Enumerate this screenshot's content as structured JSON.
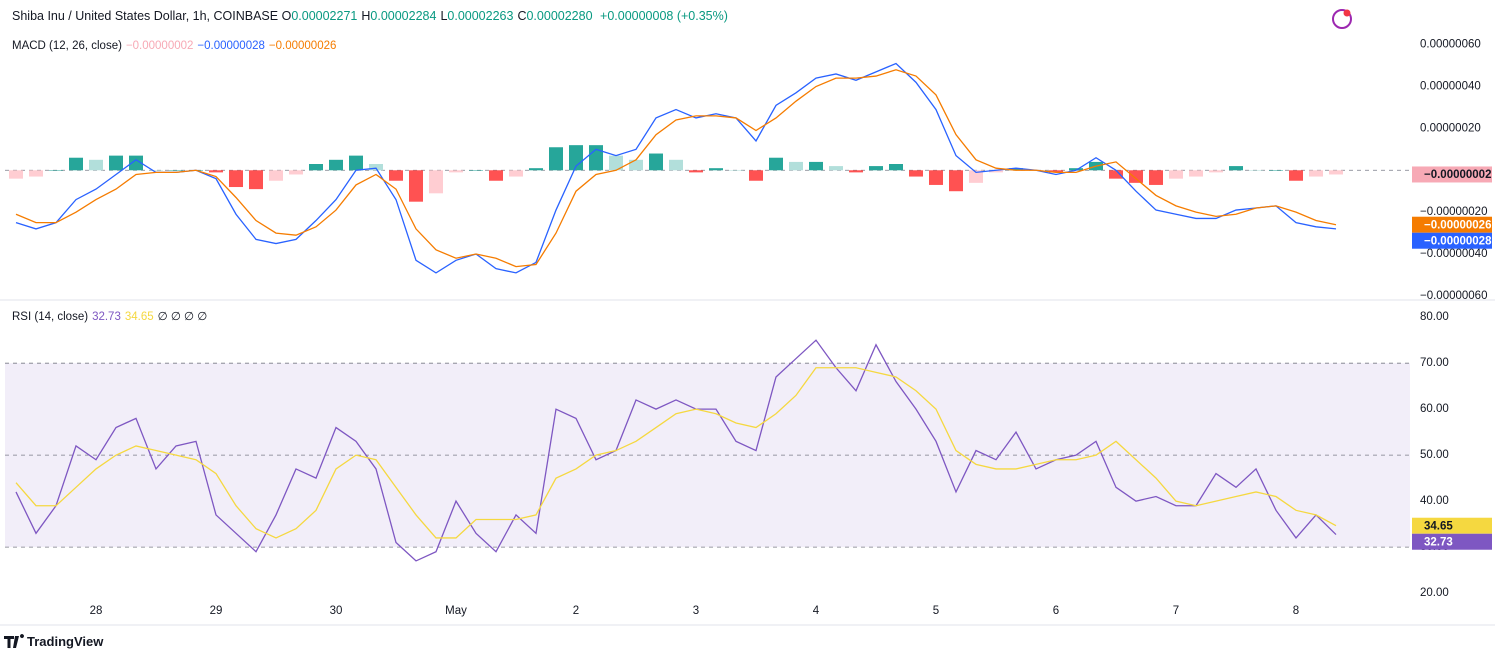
{
  "header": {
    "title": "Shiba Inu / United States Dollar, 1h, COINBASE",
    "ohlc": [
      {
        "label": "O",
        "value": "0.00002271"
      },
      {
        "label": "H",
        "value": "0.00002284"
      },
      {
        "label": "L",
        "value": "0.00002263"
      },
      {
        "label": "C",
        "value": "0.00002280"
      }
    ],
    "change": "+0.00000008 (+0.35%)"
  },
  "footer": {
    "brand": "TradingView"
  },
  "chart_data": [
    {
      "type": "line",
      "title": "MACD (12, 26, close)",
      "ylim": [
        -6.1e-07,
        6.7e-07
      ],
      "yticks": [
        {
          "value": 6e-07,
          "label": "0.00000060"
        },
        {
          "value": 4e-07,
          "label": "0.00000040"
        },
        {
          "value": 2e-07,
          "label": "0.00000020"
        },
        {
          "value": -2e-07,
          "label": "−0.00000020"
        },
        {
          "value": -4e-07,
          "label": "−0.00000040"
        },
        {
          "value": -6e-07,
          "label": "−0.00000060"
        }
      ],
      "levels": [
        0
      ],
      "series": [
        {
          "name": "Histogram",
          "type": "histogram",
          "color": "#f7a9b5",
          "last_value_label": "−0.00000002",
          "colors": {
            "up_rising": "#26a69a",
            "up_falling": "#b2dfdb",
            "down_falling": "#ff5252",
            "down_rising": "#ffcdd2"
          },
          "values": [
            -4e-08,
            -3e-08,
            0,
            6e-08,
            5e-08,
            7e-08,
            7e-08,
            0,
            0,
            0,
            -1e-08,
            -8e-08,
            -9e-08,
            -5e-08,
            -2e-08,
            3e-08,
            5e-08,
            7e-08,
            3e-08,
            -5e-08,
            -1.5e-07,
            -1.1e-07,
            -1e-08,
            0,
            -5e-08,
            -3e-08,
            1e-08,
            1.1e-07,
            1.2e-07,
            1.2e-07,
            7e-08,
            5e-08,
            8e-08,
            5e-08,
            -1e-08,
            1e-08,
            0,
            -5e-08,
            6e-08,
            4e-08,
            4e-08,
            2e-08,
            -1e-08,
            2e-08,
            3e-08,
            -3e-08,
            -7e-08,
            -1e-07,
            -6e-08,
            -1e-08,
            1e-08,
            0,
            -1e-08,
            1e-08,
            4e-08,
            -4e-08,
            -6e-08,
            -7e-08,
            -4e-08,
            -3e-08,
            -1e-08,
            2e-08,
            0,
            0,
            -5e-08,
            -3e-08,
            -2e-08
          ]
        },
        {
          "name": "MACD",
          "type": "line",
          "color": "#2962ff",
          "last_value_label": "−0.00000028",
          "values": [
            -2.5e-07,
            -2.8e-07,
            -2.5e-07,
            -1.4e-07,
            -9e-08,
            -2e-08,
            5e-08,
            -1e-08,
            -1e-08,
            0,
            -4e-08,
            -2.1e-07,
            -3.3e-07,
            -3.5e-07,
            -3.3e-07,
            -2.4e-07,
            -1.4e-07,
            0,
            1e-08,
            -1.4e-07,
            -4.3e-07,
            -4.9e-07,
            -4.3e-07,
            -4e-07,
            -4.7e-07,
            -4.9e-07,
            -4.4e-07,
            -1.9e-07,
            2e-08,
            1e-07,
            7e-08,
            1e-07,
            2.5e-07,
            2.9e-07,
            2.5e-07,
            2.7e-07,
            2.5e-07,
            1.4e-07,
            3.1e-07,
            3.7e-07,
            4.4e-07,
            4.6e-07,
            4.3e-07,
            4.7e-07,
            5.1e-07,
            4.2e-07,
            2.9e-07,
            7e-08,
            -1e-08,
            0,
            1e-08,
            0,
            -2e-08,
            0,
            6e-08,
            0,
            -1e-07,
            -1.9e-07,
            -2.1e-07,
            -2.3e-07,
            -2.3e-07,
            -1.9e-07,
            -1.8e-07,
            -1.7e-07,
            -2.5e-07,
            -2.7e-07,
            -2.8e-07
          ]
        },
        {
          "name": "Signal",
          "type": "line",
          "color": "#f57c00",
          "last_value_label": "−0.00000026",
          "values": [
            -2.1e-07,
            -2.5e-07,
            -2.5e-07,
            -2e-07,
            -1.4e-07,
            -9e-08,
            -2e-08,
            -1e-08,
            -1e-08,
            0,
            -3e-08,
            -1.3e-07,
            -2.4e-07,
            -3e-07,
            -3.1e-07,
            -2.7e-07,
            -1.9e-07,
            -7e-08,
            -2e-08,
            -9e-08,
            -2.8e-07,
            -3.8e-07,
            -4.2e-07,
            -4e-07,
            -4.2e-07,
            -4.6e-07,
            -4.5e-07,
            -3e-07,
            -1e-07,
            -2e-08,
            0,
            5e-08,
            1.7e-07,
            2.4e-07,
            2.6e-07,
            2.6e-07,
            2.5e-07,
            1.9e-07,
            2.5e-07,
            3.3e-07,
            4e-07,
            4.4e-07,
            4.4e-07,
            4.5e-07,
            4.8e-07,
            4.5e-07,
            3.6e-07,
            1.7e-07,
            5e-08,
            1e-08,
            0,
            0,
            -1e-08,
            -1e-08,
            2e-08,
            4e-08,
            -4e-08,
            -1.2e-07,
            -1.7e-07,
            -2e-07,
            -2.2e-07,
            -2.1e-07,
            -1.8e-07,
            -1.7e-07,
            -2e-07,
            -2.4e-07,
            -2.6e-07
          ]
        }
      ]
    },
    {
      "type": "line",
      "title": "RSI (14, close)",
      "na_labels": "∅ ∅ ∅ ∅",
      "ylim": [
        18.5,
        83.3
      ],
      "yticks": [
        {
          "value": 80,
          "label": "80.00"
        },
        {
          "value": 70,
          "label": "70.00"
        },
        {
          "value": 60,
          "label": "60.00"
        },
        {
          "value": 50,
          "label": "50.00"
        },
        {
          "value": 40,
          "label": "40.00"
        },
        {
          "value": 30,
          "label": "30.00"
        },
        {
          "value": 20,
          "label": "20.00"
        }
      ],
      "band": [
        30,
        70
      ],
      "band_color": "#7e57c2",
      "levels": [
        70,
        50,
        30
      ],
      "categories": [
        null,
        null,
        null,
        null,
        "28",
        null,
        null,
        null,
        null,
        null,
        "29",
        null,
        null,
        null,
        null,
        null,
        "30",
        null,
        null,
        null,
        null,
        null,
        "May",
        null,
        null,
        null,
        null,
        null,
        "2",
        null,
        null,
        null,
        null,
        null,
        "3",
        null,
        null,
        null,
        null,
        null,
        "4",
        null,
        null,
        null,
        null,
        null,
        "5",
        null,
        null,
        null,
        null,
        null,
        "6",
        null,
        null,
        null,
        null,
        null,
        "7",
        null,
        null,
        null,
        null,
        null,
        "8",
        null,
        null
      ],
      "series": [
        {
          "name": "RSI",
          "type": "line",
          "color": "#7e57c2",
          "values": [
            42,
            33,
            39,
            52,
            49,
            56,
            58,
            47,
            52,
            53,
            37,
            33,
            29,
            37,
            47,
            45,
            56,
            53,
            47,
            31,
            27,
            29,
            40,
            33,
            29,
            37,
            33,
            60,
            58,
            49,
            51,
            62,
            60,
            62,
            60,
            60,
            53,
            51,
            67,
            71,
            75,
            69,
            64,
            74,
            66,
            60,
            53,
            42,
            51,
            49,
            55,
            47,
            49,
            50,
            53,
            43,
            40,
            41,
            39,
            39,
            46,
            43,
            47,
            38,
            32,
            37,
            32.73
          ]
        },
        {
          "name": "RSI MA",
          "type": "line",
          "color": "#f5d840",
          "values": [
            44,
            39,
            39,
            43,
            47,
            50,
            52,
            51,
            50,
            49,
            46,
            39,
            34,
            32,
            34,
            38,
            47,
            50,
            49,
            43,
            37,
            32,
            32,
            36,
            36,
            36,
            37,
            45,
            47,
            50,
            51,
            53,
            56,
            59,
            60,
            59,
            57,
            56,
            59,
            63,
            69,
            69,
            69,
            68,
            67,
            64,
            60,
            51,
            48,
            47,
            47,
            48,
            49,
            49,
            50,
            53,
            49,
            45,
            40,
            39,
            40,
            41,
            42,
            41,
            38,
            37,
            34.65
          ]
        }
      ]
    }
  ]
}
